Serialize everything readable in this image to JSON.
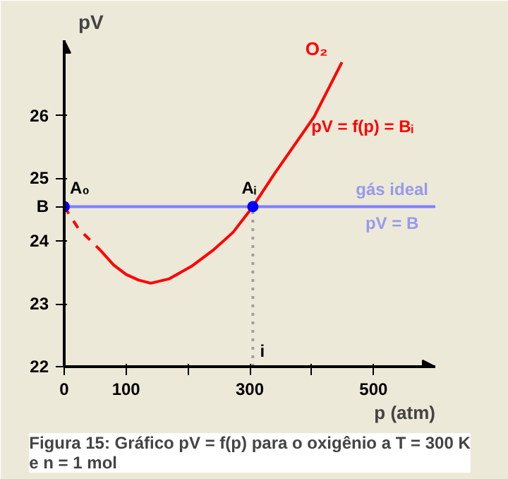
{
  "chart_data": {
    "type": "line",
    "title": "Figura 15: Gráfico pV = f(p) para o oxigênio a T = 300 K e n = 1 mol",
    "xlabel": "p (atm)",
    "ylabel": "pV",
    "xlim": [
      0,
      600
    ],
    "ylim": [
      22,
      27.2
    ],
    "xticks": [
      0,
      100,
      {
        "value": 200,
        "label": null
      },
      300,
      {
        "value": 400,
        "label": null
      },
      500
    ],
    "yticks": [
      22,
      23,
      24,
      {
        "value": 24.55,
        "label": "B"
      },
      25,
      26
    ],
    "grid": false,
    "series": [
      {
        "color": "#ff0000",
        "line_style": "dashed",
        "x": [
          0,
          23,
          58
        ],
        "values": [
          24.55,
          24.2,
          23.86
        ]
      },
      {
        "name": "O₂",
        "color": "#ff0000",
        "line_style": "solid",
        "x": [
          58,
          80,
          100,
          120,
          140,
          170,
          206,
          240,
          273,
          305,
          339,
          370,
          404,
          449
        ],
        "values": [
          23.86,
          23.62,
          23.47,
          23.38,
          23.33,
          23.4,
          23.6,
          23.85,
          24.14,
          24.55,
          25.06,
          25.5,
          25.98,
          26.85
        ]
      },
      {
        "color": "#8080ff",
        "line_style": "solid",
        "x": [
          0,
          600
        ],
        "values": [
          24.55,
          24.55
        ]
      },
      {
        "color": "#a0a0a0",
        "line_style": "dotted",
        "x": [
          305,
          305
        ],
        "values": [
          22,
          24.55
        ]
      },
      {
        "type": "scatter",
        "marker": "circle",
        "color": "#0000ff",
        "x": [
          0,
          305
        ],
        "values": [
          24.55,
          24.55
        ]
      }
    ],
    "annotations": [
      {
        "text": "A₀",
        "x": 0,
        "y": 24.55
      },
      {
        "text": "Aᵢ",
        "x": 305,
        "y": 24.55
      },
      {
        "text": "i",
        "x": 305,
        "y": 22
      },
      {
        "text": "pV = f(p) = Bᵢ",
        "x": 404,
        "y": 25.98
      },
      {
        "text": "gás ideal",
        "x": 530,
        "y": 24.55
      },
      {
        "text": "pV = B",
        "x": 530,
        "y": 24.55
      }
    ]
  }
}
